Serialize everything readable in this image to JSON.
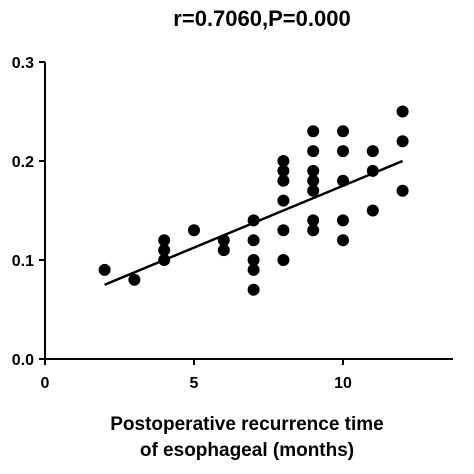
{
  "chart_data": {
    "type": "scatter",
    "title": "r=0.7060,P=0.000",
    "xlabel": [
      "Postoperative recurrence time",
      "of esophageal (months)"
    ],
    "ylabel": "",
    "xlim": [
      0,
      15
    ],
    "ylim": [
      0,
      0.3
    ],
    "xticks": [
      0,
      5,
      10
    ],
    "yticks": [
      0.0,
      0.1,
      0.2,
      0.3
    ],
    "xtick_labels": [
      "0",
      "5",
      "10"
    ],
    "ytick_labels": [
      "0.0",
      "0.1",
      "0.2",
      "0.3"
    ],
    "grid": false,
    "points": [
      {
        "x": 2,
        "y": 0.09
      },
      {
        "x": 3,
        "y": 0.08
      },
      {
        "x": 4,
        "y": 0.12
      },
      {
        "x": 4,
        "y": 0.11
      },
      {
        "x": 4,
        "y": 0.1
      },
      {
        "x": 5,
        "y": 0.13
      },
      {
        "x": 6,
        "y": 0.12
      },
      {
        "x": 6,
        "y": 0.11
      },
      {
        "x": 7,
        "y": 0.14
      },
      {
        "x": 7,
        "y": 0.12
      },
      {
        "x": 7,
        "y": 0.1
      },
      {
        "x": 7,
        "y": 0.09
      },
      {
        "x": 7,
        "y": 0.07
      },
      {
        "x": 8,
        "y": 0.2
      },
      {
        "x": 8,
        "y": 0.19
      },
      {
        "x": 8,
        "y": 0.18
      },
      {
        "x": 8,
        "y": 0.16
      },
      {
        "x": 8,
        "y": 0.13
      },
      {
        "x": 8,
        "y": 0.1
      },
      {
        "x": 9,
        "y": 0.23
      },
      {
        "x": 9,
        "y": 0.21
      },
      {
        "x": 9,
        "y": 0.19
      },
      {
        "x": 9,
        "y": 0.18
      },
      {
        "x": 9,
        "y": 0.17
      },
      {
        "x": 9,
        "y": 0.14
      },
      {
        "x": 9,
        "y": 0.13
      },
      {
        "x": 10,
        "y": 0.23
      },
      {
        "x": 10,
        "y": 0.21
      },
      {
        "x": 10,
        "y": 0.18
      },
      {
        "x": 10,
        "y": 0.14
      },
      {
        "x": 10,
        "y": 0.12
      },
      {
        "x": 11,
        "y": 0.21
      },
      {
        "x": 11,
        "y": 0.19
      },
      {
        "x": 11,
        "y": 0.15
      },
      {
        "x": 12,
        "y": 0.25
      },
      {
        "x": 12,
        "y": 0.22
      },
      {
        "x": 12,
        "y": 0.17
      }
    ],
    "fit_line": {
      "x": [
        2,
        12
      ],
      "y": [
        0.075,
        0.2
      ]
    },
    "colors": {
      "marker": "#000000",
      "line": "#000000",
      "axis": "#000000"
    }
  }
}
